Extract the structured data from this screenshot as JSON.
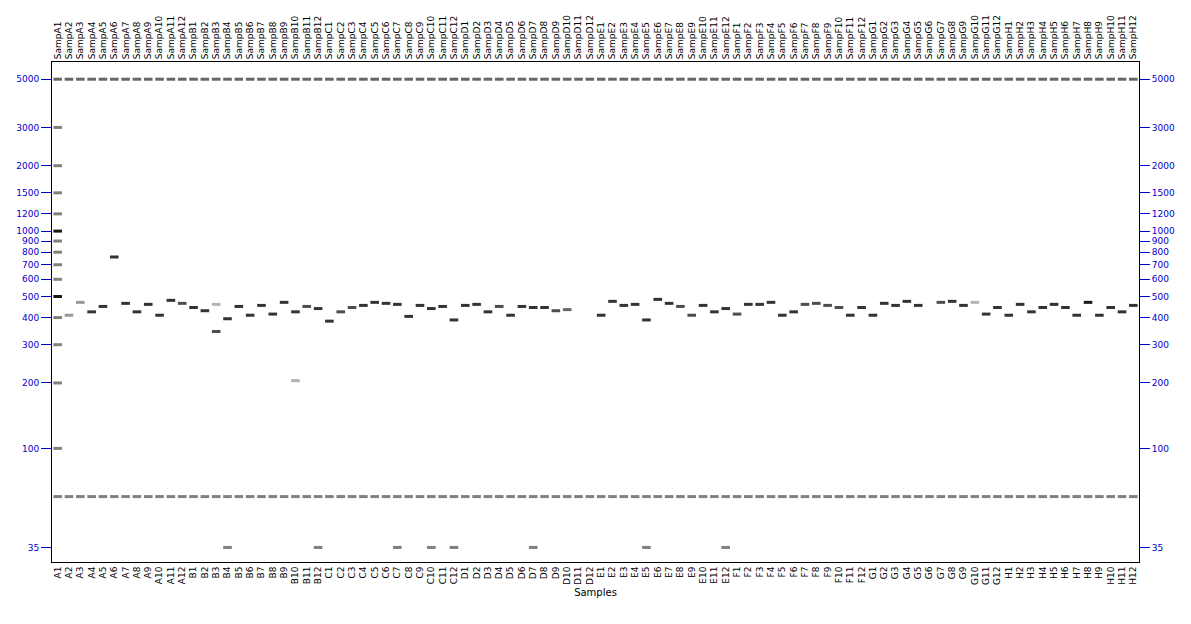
{
  "chart_data": {
    "type": "gel",
    "x_label": "Samples",
    "categories": [
      "A1",
      "A2",
      "A3",
      "A4",
      "A5",
      "A6",
      "A7",
      "A8",
      "A9",
      "A10",
      "A11",
      "A12",
      "B1",
      "B2",
      "B3",
      "B4",
      "B5",
      "B6",
      "B7",
      "B8",
      "B9",
      "B10",
      "B11",
      "B12",
      "C1",
      "C2",
      "C3",
      "C4",
      "C5",
      "C6",
      "C7",
      "C8",
      "C9",
      "C10",
      "C11",
      "C12",
      "D1",
      "D2",
      "D3",
      "D4",
      "D5",
      "D6",
      "D7",
      "D8",
      "D9",
      "D10",
      "D11",
      "D12",
      "E1",
      "E2",
      "E3",
      "E4",
      "E5",
      "E6",
      "E7",
      "E8",
      "E9",
      "E10",
      "E11",
      "E12",
      "F1",
      "F2",
      "F3",
      "F4",
      "F5",
      "F6",
      "F7",
      "F8",
      "F9",
      "F10",
      "F11",
      "F12",
      "G1",
      "G2",
      "G3",
      "G4",
      "G5",
      "G6",
      "G7",
      "G8",
      "G9",
      "G10",
      "G11",
      "G12",
      "H1",
      "H2",
      "H3",
      "H4",
      "H5",
      "H6",
      "H7",
      "H8",
      "H9",
      "H10",
      "H11",
      "H12"
    ],
    "top_labels": [
      "SampA1",
      "SampA2",
      "SampA3",
      "SampA4",
      "SampA5",
      "SampA6",
      "SampA7",
      "SampA8",
      "SampA9",
      "SampA10",
      "SampA11",
      "SampA12",
      "SampB1",
      "SampB2",
      "SampB3",
      "SampB4",
      "SampB5",
      "SampB6",
      "SampB7",
      "SampB8",
      "SampB9",
      "SampB10",
      "SampB11",
      "SampB12",
      "SampC1",
      "SampC2",
      "SampC3",
      "SampC4",
      "SampC5",
      "SampC6",
      "SampC7",
      "SampC8",
      "SampC9",
      "SampC10",
      "SampC11",
      "SampC12",
      "SampD1",
      "SampD2",
      "SampD3",
      "SampD4",
      "SampD5",
      "SampD6",
      "SampD7",
      "SampD8",
      "SampD9",
      "SampD10",
      "SampD11",
      "SampD12",
      "SampE1",
      "SampE2",
      "SampE3",
      "SampE4",
      "SampE5",
      "SampE6",
      "SampE7",
      "SampE8",
      "SampE9",
      "SampE10",
      "SampE11",
      "SampE12",
      "SampF1",
      "SampF2",
      "SampF3",
      "SampF4",
      "SampF5",
      "SampF6",
      "SampF7",
      "SampF8",
      "SampF9",
      "SampF10",
      "SampF11",
      "SampF12",
      "SampG1",
      "SampG2",
      "SampG3",
      "SampG4",
      "SampG5",
      "SampG6",
      "SampG7",
      "SampG8",
      "SampG9",
      "SampG10",
      "SampG11",
      "SampG12",
      "SampH1",
      "SampH2",
      "SampH3",
      "SampH4",
      "SampH5",
      "SampH6",
      "SampH7",
      "SampH8",
      "SampH9",
      "SampH10",
      "SampH11",
      "SampH12"
    ],
    "markers": [
      [
        5000,
        0.6
      ],
      [
        60,
        0.5
      ]
    ],
    "lanes": [
      {
        "bands": [
          [
            3000,
            0.5
          ],
          [
            2000,
            0.5
          ],
          [
            1500,
            0.5
          ],
          [
            1200,
            0.5
          ],
          [
            1000,
            0.9
          ],
          [
            900,
            0.5
          ],
          [
            800,
            0.5
          ],
          [
            700,
            0.5
          ],
          [
            600,
            0.5
          ],
          [
            500,
            0.9
          ],
          [
            400,
            0.5
          ],
          [
            300,
            0.5
          ],
          [
            200,
            0.5
          ],
          [
            100,
            0.5
          ]
        ]
      },
      {
        "bands": [
          [
            410,
            0.4
          ]
        ]
      },
      {
        "bands": [
          [
            470,
            0.4
          ]
        ]
      },
      {
        "bands": [
          [
            425,
            0.8
          ]
        ]
      },
      {
        "bands": [
          [
            450,
            0.8
          ]
        ]
      },
      {
        "bands": [
          [
            760,
            0.8
          ]
        ]
      },
      {
        "bands": [
          [
            465,
            0.8
          ]
        ]
      },
      {
        "bands": [
          [
            425,
            0.8
          ]
        ]
      },
      {
        "bands": [
          [
            460,
            0.8
          ]
        ]
      },
      {
        "bands": [
          [
            410,
            0.8
          ]
        ]
      },
      {
        "bands": [
          [
            480,
            0.8
          ]
        ]
      },
      {
        "bands": [
          [
            465,
            0.7
          ]
        ]
      },
      {
        "bands": [
          [
            445,
            0.8
          ]
        ]
      },
      {
        "bands": [
          [
            430,
            0.8
          ]
        ]
      },
      {
        "bands": [
          [
            345,
            0.7
          ],
          [
            460,
            0.3
          ]
        ]
      },
      {
        "bands": [
          [
            395,
            0.8
          ],
          [
            35,
            0.5
          ]
        ]
      },
      {
        "bands": [
          [
            450,
            0.8
          ]
        ]
      },
      {
        "bands": [
          [
            410,
            0.8
          ]
        ]
      },
      {
        "bands": [
          [
            455,
            0.8
          ]
        ]
      },
      {
        "bands": [
          [
            415,
            0.8
          ]
        ]
      },
      {
        "bands": [
          [
            470,
            0.8
          ]
        ]
      },
      {
        "bands": [
          [
            425,
            0.8
          ],
          [
            205,
            0.3
          ]
        ]
      },
      {
        "bands": [
          [
            450,
            0.7
          ]
        ]
      },
      {
        "bands": [
          [
            440,
            0.8
          ],
          [
            35,
            0.5
          ]
        ]
      },
      {
        "bands": [
          [
            385,
            0.8
          ]
        ]
      },
      {
        "bands": [
          [
            425,
            0.7
          ]
        ]
      },
      {
        "bands": [
          [
            445,
            0.7
          ]
        ]
      },
      {
        "bands": [
          [
            455,
            0.8
          ]
        ]
      },
      {
        "bands": [
          [
            470,
            0.8
          ]
        ]
      },
      {
        "bands": [
          [
            465,
            0.8
          ]
        ]
      },
      {
        "bands": [
          [
            460,
            0.8
          ],
          [
            35,
            0.5
          ]
        ]
      },
      {
        "bands": [
          [
            405,
            0.8
          ]
        ]
      },
      {
        "bands": [
          [
            455,
            0.8
          ]
        ]
      },
      {
        "bands": [
          [
            440,
            0.8
          ],
          [
            35,
            0.5
          ]
        ]
      },
      {
        "bands": [
          [
            450,
            0.8
          ]
        ]
      },
      {
        "bands": [
          [
            390,
            0.8
          ],
          [
            35,
            0.5
          ]
        ]
      },
      {
        "bands": [
          [
            455,
            0.8
          ]
        ]
      },
      {
        "bands": [
          [
            460,
            0.8
          ]
        ]
      },
      {
        "bands": [
          [
            425,
            0.8
          ]
        ]
      },
      {
        "bands": [
          [
            450,
            0.7
          ]
        ]
      },
      {
        "bands": [
          [
            410,
            0.8
          ]
        ]
      },
      {
        "bands": [
          [
            450,
            0.8
          ]
        ]
      },
      {
        "bands": [
          [
            445,
            0.8
          ],
          [
            35,
            0.5
          ]
        ]
      },
      {
        "bands": [
          [
            445,
            0.8
          ]
        ]
      },
      {
        "bands": [
          [
            430,
            0.7
          ]
        ]
      },
      {
        "bands": [
          [
            435,
            0.6
          ]
        ]
      },
      {
        "bands": []
      },
      {
        "bands": []
      },
      {
        "bands": [
          [
            410,
            0.8
          ]
        ]
      },
      {
        "bands": [
          [
            475,
            0.8
          ]
        ]
      },
      {
        "bands": [
          [
            455,
            0.8
          ]
        ]
      },
      {
        "bands": [
          [
            460,
            0.8
          ]
        ]
      },
      {
        "bands": [
          [
            390,
            0.8
          ],
          [
            35,
            0.5
          ]
        ]
      },
      {
        "bands": [
          [
            485,
            0.8
          ]
        ]
      },
      {
        "bands": [
          [
            465,
            0.8
          ]
        ]
      },
      {
        "bands": [
          [
            450,
            0.7
          ]
        ]
      },
      {
        "bands": [
          [
            410,
            0.7
          ]
        ]
      },
      {
        "bands": [
          [
            455,
            0.8
          ]
        ]
      },
      {
        "bands": [
          [
            425,
            0.8
          ]
        ]
      },
      {
        "bands": [
          [
            440,
            0.8
          ],
          [
            35,
            0.5
          ]
        ]
      },
      {
        "bands": [
          [
            415,
            0.7
          ]
        ]
      },
      {
        "bands": [
          [
            460,
            0.8
          ]
        ]
      },
      {
        "bands": [
          [
            460,
            0.8
          ]
        ]
      },
      {
        "bands": [
          [
            470,
            0.8
          ]
        ]
      },
      {
        "bands": [
          [
            410,
            0.8
          ]
        ]
      },
      {
        "bands": [
          [
            425,
            0.8
          ]
        ]
      },
      {
        "bands": [
          [
            460,
            0.7
          ]
        ]
      },
      {
        "bands": [
          [
            465,
            0.7
          ]
        ]
      },
      {
        "bands": [
          [
            455,
            0.7
          ]
        ]
      },
      {
        "bands": [
          [
            445,
            0.7
          ]
        ]
      },
      {
        "bands": [
          [
            410,
            0.8
          ]
        ]
      },
      {
        "bands": [
          [
            445,
            0.8
          ]
        ]
      },
      {
        "bands": [
          [
            410,
            0.8
          ]
        ]
      },
      {
        "bands": [
          [
            465,
            0.8
          ]
        ]
      },
      {
        "bands": [
          [
            455,
            0.8
          ]
        ]
      },
      {
        "bands": [
          [
            475,
            0.8
          ]
        ]
      },
      {
        "bands": [
          [
            455,
            0.8
          ]
        ]
      },
      {
        "bands": []
      },
      {
        "bands": [
          [
            470,
            0.7
          ]
        ]
      },
      {
        "bands": [
          [
            475,
            0.8
          ]
        ]
      },
      {
        "bands": [
          [
            455,
            0.8
          ]
        ]
      },
      {
        "bands": [
          [
            470,
            0.3
          ]
        ]
      },
      {
        "bands": [
          [
            415,
            0.8
          ]
        ]
      },
      {
        "bands": [
          [
            445,
            0.8
          ]
        ]
      },
      {
        "bands": [
          [
            410,
            0.8
          ]
        ]
      },
      {
        "bands": [
          [
            460,
            0.8
          ]
        ]
      },
      {
        "bands": [
          [
            425,
            0.8
          ]
        ]
      },
      {
        "bands": [
          [
            445,
            0.8
          ]
        ]
      },
      {
        "bands": [
          [
            460,
            0.8
          ]
        ]
      },
      {
        "bands": [
          [
            445,
            0.8
          ]
        ]
      },
      {
        "bands": [
          [
            410,
            0.8
          ]
        ]
      },
      {
        "bands": [
          [
            470,
            0.9
          ]
        ]
      },
      {
        "bands": [
          [
            410,
            0.8
          ]
        ]
      },
      {
        "bands": [
          [
            445,
            0.8
          ]
        ]
      },
      {
        "bands": [
          [
            425,
            0.8
          ]
        ]
      },
      {
        "bands": [
          [
            455,
            0.8
          ]
        ]
      }
    ],
    "log": "y",
    "grid": false,
    "ylim": [
      30,
      6000
    ],
    "yticks": [
      35,
      100,
      200,
      300,
      400,
      500,
      600,
      700,
      800,
      900,
      1000,
      1200,
      1500,
      2000,
      3000,
      5000
    ]
  }
}
